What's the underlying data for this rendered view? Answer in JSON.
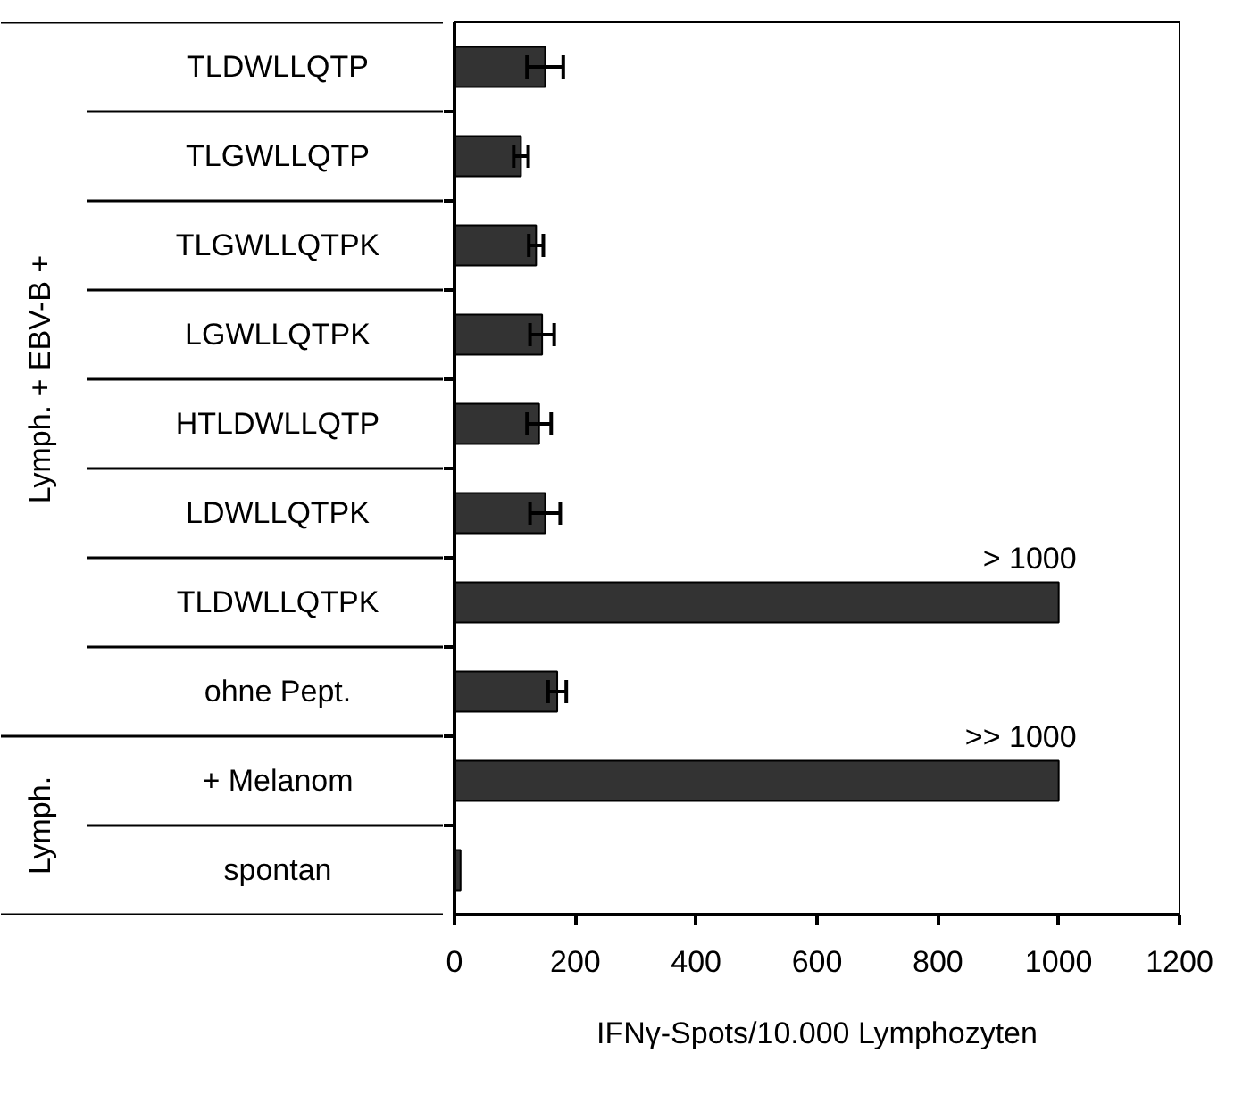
{
  "chart_data": {
    "type": "bar",
    "orientation": "horizontal",
    "categories": [
      "TLDWLLQTP",
      "TLGWLLQTP",
      "TLGWLLQTPK",
      "LGWLLQTPK",
      "HTLDWLLQTP",
      "LDWLLQTPK",
      "TLDWLLQTPK",
      "ohne Pept.",
      "+ Melanom",
      "spontan"
    ],
    "values": [
      150,
      110,
      135,
      145,
      140,
      150,
      1000,
      170,
      1000,
      10
    ],
    "errors": [
      30,
      12,
      12,
      20,
      20,
      25,
      null,
      15,
      null,
      null
    ],
    "value_labels": [
      null,
      null,
      null,
      null,
      null,
      null,
      "> 1000",
      null,
      ">> 1000",
      null
    ],
    "color": "#333333",
    "xlim": [
      0,
      1200
    ],
    "xticks": [
      0,
      200,
      400,
      600,
      800,
      1000,
      1200
    ],
    "xlabel": "IFNγ-Spots/10.000 Lymphozyten",
    "annotations": [
      "Lymph. + EBV-B +",
      "Lymph."
    ],
    "grid": false
  }
}
